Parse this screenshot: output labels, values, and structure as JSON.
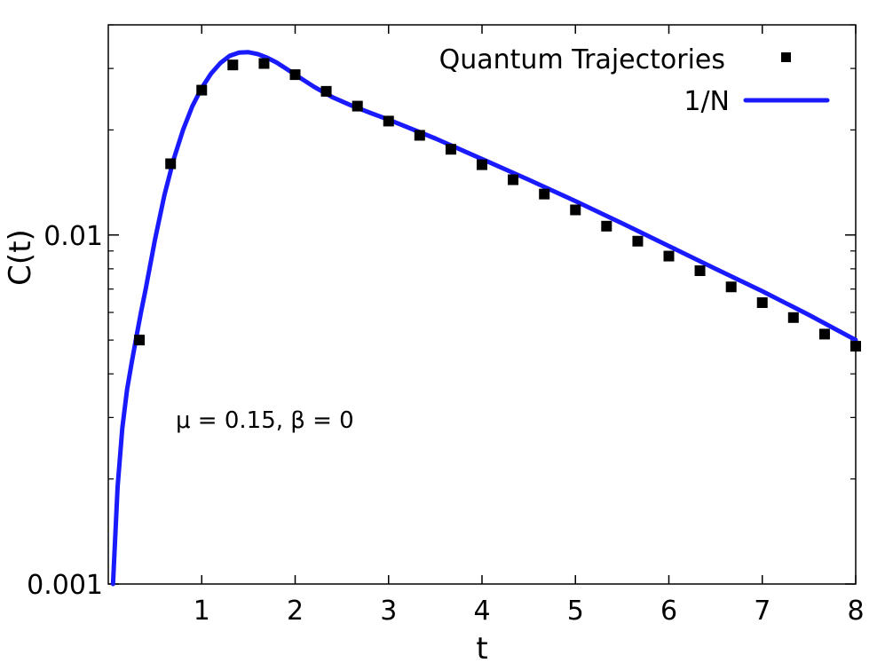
{
  "chart_data": {
    "type": "scatter",
    "xlabel": "t",
    "ylabel": "C(t)",
    "xlim": [
      0,
      8
    ],
    "ylim": [
      0.001,
      0.04
    ],
    "yscale": "log",
    "x_ticks": [
      1,
      2,
      3,
      4,
      5,
      6,
      7,
      8
    ],
    "x_tick_labels": [
      "1",
      "2",
      "3",
      "4",
      "5",
      "6",
      "7",
      "8"
    ],
    "y_ticks": [
      0.001,
      0.01
    ],
    "y_tick_labels": [
      "0.001",
      "0.01"
    ],
    "annotation": "μ = 0.15, β = 0",
    "grid": false,
    "legend_position": "top-right",
    "series": [
      {
        "name": "Quantum Trajectories",
        "kind": "markers",
        "color": "#000000",
        "x": [
          0.333,
          0.667,
          1.0,
          1.333,
          1.667,
          2.0,
          2.333,
          2.667,
          3.0,
          3.333,
          3.667,
          4.0,
          4.333,
          4.667,
          5.0,
          5.333,
          5.667,
          6.0,
          6.333,
          6.667,
          7.0,
          7.333,
          7.667,
          8.0
        ],
        "y": [
          0.005,
          0.016,
          0.026,
          0.0307,
          0.031,
          0.0288,
          0.0258,
          0.0234,
          0.0212,
          0.0193,
          0.0176,
          0.0159,
          0.0144,
          0.0131,
          0.0118,
          0.0106,
          0.0096,
          0.0087,
          0.0079,
          0.0071,
          0.0064,
          0.0058,
          0.0052,
          0.0048
        ]
      },
      {
        "name": "1/N",
        "kind": "line",
        "color": "#1a1aff",
        "x": [
          0.05,
          0.1,
          0.15,
          0.2,
          0.25,
          0.3,
          0.35,
          0.4,
          0.5,
          0.6,
          0.7,
          0.8,
          0.9,
          1.0,
          1.1,
          1.2,
          1.3,
          1.4,
          1.5,
          1.6,
          1.7,
          1.8,
          1.9,
          2.0,
          2.2,
          2.4,
          2.6,
          2.8,
          3.0,
          3.5,
          4.0,
          4.5,
          5.0,
          5.5,
          6.0,
          6.5,
          7.0,
          7.5,
          8.0
        ],
        "y": [
          0.001,
          0.0019,
          0.0028,
          0.0036,
          0.0043,
          0.0051,
          0.006,
          0.007,
          0.0097,
          0.013,
          0.0165,
          0.02,
          0.0234,
          0.0264,
          0.029,
          0.0311,
          0.0326,
          0.0333,
          0.0334,
          0.033,
          0.0322,
          0.0312,
          0.03,
          0.0288,
          0.0266,
          0.0248,
          0.0235,
          0.0224,
          0.0214,
          0.0189,
          0.0165,
          0.0144,
          0.0125,
          0.0108,
          0.0093,
          0.008,
          0.0069,
          0.0059,
          0.005
        ]
      }
    ]
  }
}
